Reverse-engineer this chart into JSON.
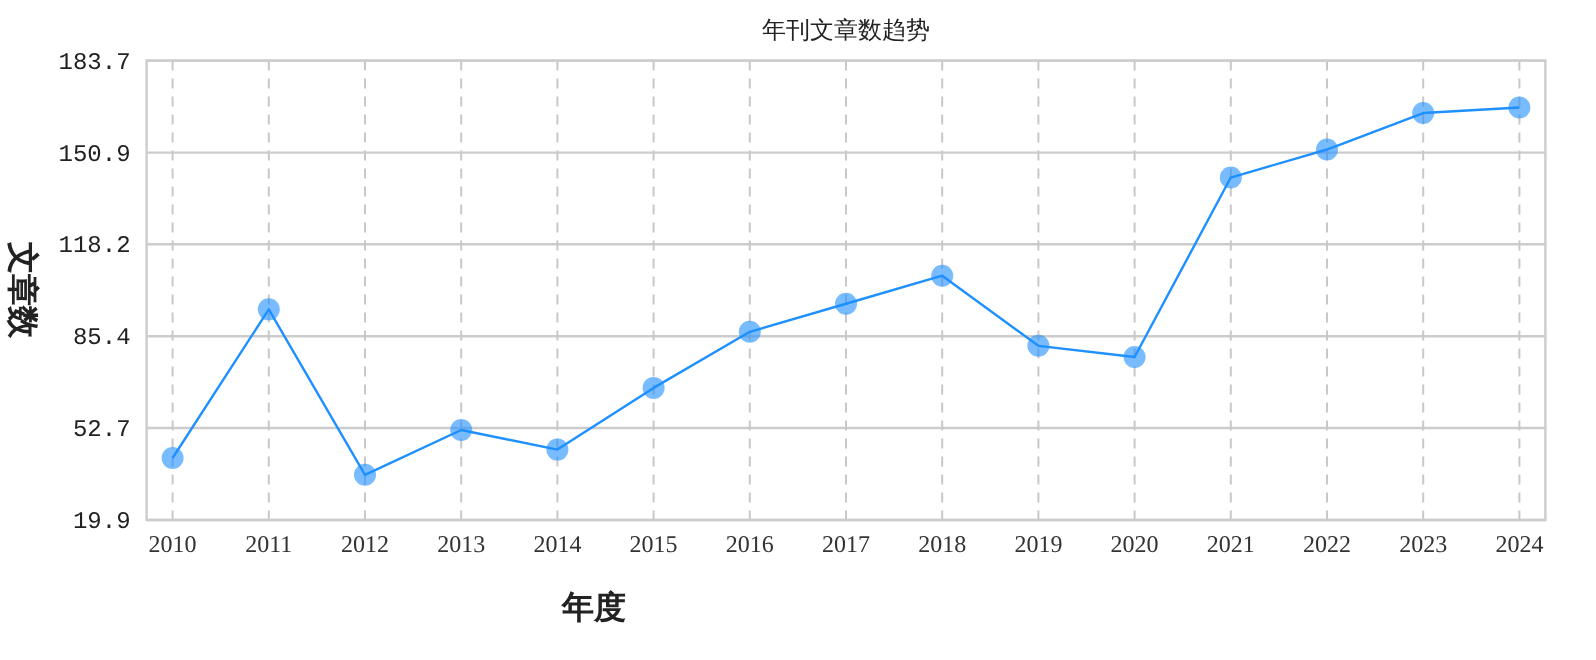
{
  "chart_data": {
    "type": "line",
    "title": "年刊文章数趋势",
    "xlabel": "年度",
    "ylabel": "文章数",
    "categories": [
      "2010",
      "2011",
      "2012",
      "2013",
      "2014",
      "2015",
      "2016",
      "2017",
      "2018",
      "2019",
      "2020",
      "2021",
      "2022",
      "2023",
      "2024"
    ],
    "series": [
      {
        "color": "#1e90ff",
        "values": [
          42,
          95,
          36,
          52,
          45,
          67,
          87,
          97,
          107,
          82,
          78,
          142,
          152,
          165,
          167
        ]
      }
    ],
    "ylim": [
      19.9,
      183.7
    ],
    "yticks": [
      19.9,
      52.7,
      85.4,
      118.2,
      150.9,
      183.7
    ],
    "grid": true,
    "marker": "circle",
    "line_style": "solid"
  }
}
